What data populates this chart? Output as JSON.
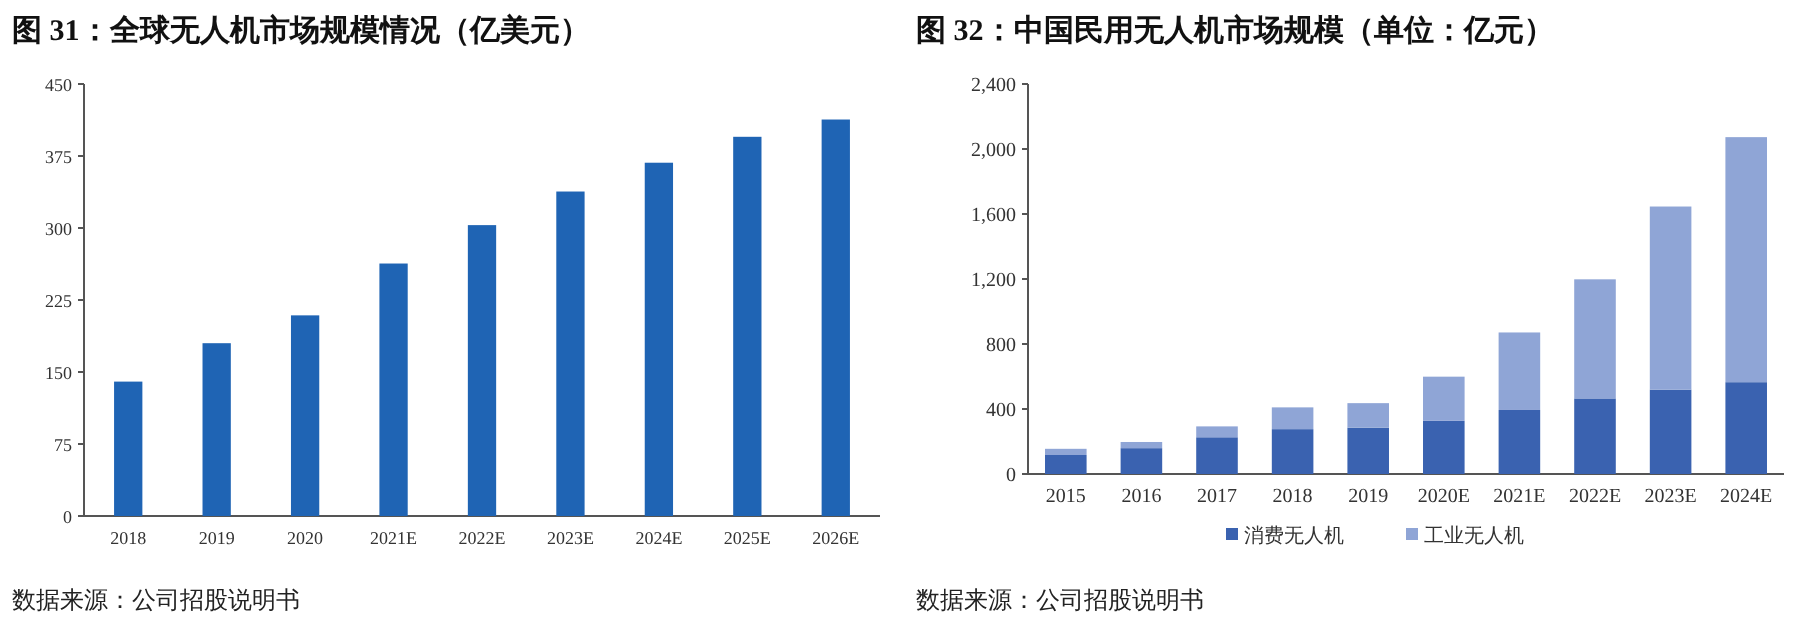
{
  "chart_data": [
    {
      "type": "bar",
      "title": "图 31：全球无人机市场规模情况（亿美元）",
      "categories": [
        "2018",
        "2019",
        "2020",
        "2021E",
        "2022E",
        "2023E",
        "2024E",
        "2025E",
        "2026E"
      ],
      "series": [
        {
          "color": "#1f64b4",
          "values": [
            140,
            180,
            209,
            263,
            303,
            338,
            368,
            395,
            413
          ]
        }
      ],
      "ylim": [
        0,
        450
      ],
      "yticks": [
        0,
        75,
        150,
        225,
        300,
        375,
        450
      ],
      "annotations": [
        "数据来源：公司招股说明书"
      ]
    },
    {
      "type": "bar",
      "title": "图 32：中国民用无人机市场规模（单位：亿元）",
      "stacked": true,
      "legend": "bottom",
      "categories": [
        "2015",
        "2016",
        "2017",
        "2018",
        "2019",
        "2020E",
        "2021E",
        "2022E",
        "2023E",
        "2024E"
      ],
      "series": [
        {
          "name": "消费无人机",
          "color": "#3a62b0",
          "values": [
            117,
            159,
            226,
            276,
            285,
            327,
            394,
            465,
            519,
            565
          ]
        },
        {
          "name": "工业无人机",
          "color": "#8fa5d6",
          "values": [
            38,
            38,
            67,
            134,
            151,
            272,
            477,
            733,
            1127,
            1508
          ]
        }
      ],
      "ylim": [
        0,
        2400
      ],
      "yticks": [
        0,
        {
          "value": 400,
          "label": "400"
        },
        {
          "value": 800,
          "label": "800"
        },
        {
          "value": 1200,
          "label": "1,200"
        },
        {
          "value": 1600,
          "label": "1,600"
        },
        {
          "value": 2000,
          "label": "2,000"
        },
        {
          "value": 2400,
          "label": "2,400"
        }
      ],
      "annotations": [
        "数据来源：公司招股说明书"
      ]
    }
  ]
}
